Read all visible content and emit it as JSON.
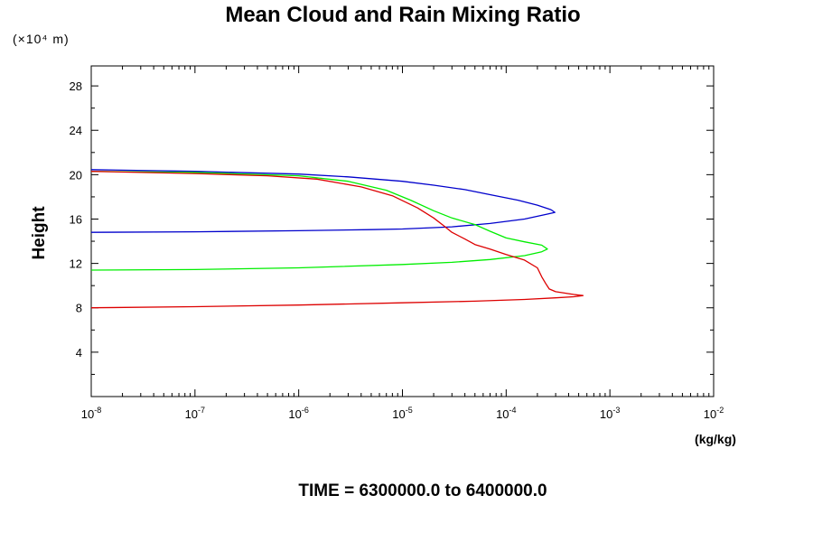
{
  "chart_data": {
    "type": "line",
    "title": "Mean Cloud and Rain Mixing Ratio",
    "ylabel": "Height",
    "yunit_note": "(×10⁴ m)",
    "xunit": "(kg/kg)",
    "footer": "TIME = 6300000.0 to 6400000.0",
    "x_scale": "log",
    "xlim": [
      1e-08,
      0.01
    ],
    "ylim": [
      0,
      29.8
    ],
    "x_tick_base": "10",
    "x_tick_exponents": [
      "-8",
      "-7",
      "-6",
      "-5",
      "-4",
      "-3",
      "-2"
    ],
    "y_ticks": [
      "4",
      "8",
      "12",
      "16",
      "20",
      "24",
      "28"
    ],
    "grid": false,
    "series": [
      {
        "color": "#0000cc",
        "points": [
          [
            1e-08,
            14.8
          ],
          [
            1e-07,
            14.85
          ],
          [
            1e-06,
            14.95
          ],
          [
            5e-06,
            15.05
          ],
          [
            1e-05,
            15.1
          ],
          [
            3e-05,
            15.3
          ],
          [
            7e-05,
            15.6
          ],
          [
            0.00015,
            16.0
          ],
          [
            0.00025,
            16.45
          ],
          [
            0.000295,
            16.6
          ],
          [
            0.00027,
            16.85
          ],
          [
            0.0002,
            17.25
          ],
          [
            0.00013,
            17.7
          ],
          [
            7e-05,
            18.2
          ],
          [
            4e-05,
            18.65
          ],
          [
            2e-05,
            19.05
          ],
          [
            1e-05,
            19.4
          ],
          [
            3e-06,
            19.8
          ],
          [
            1e-06,
            20.05
          ],
          [
            1e-07,
            20.3
          ],
          [
            1e-08,
            20.45
          ]
        ]
      },
      {
        "color": "#00ee00",
        "points": [
          [
            1e-08,
            11.4
          ],
          [
            1e-07,
            11.45
          ],
          [
            1e-06,
            11.6
          ],
          [
            1e-05,
            11.9
          ],
          [
            3e-05,
            12.1
          ],
          [
            7e-05,
            12.35
          ],
          [
            0.00015,
            12.7
          ],
          [
            0.00022,
            13.05
          ],
          [
            0.00025,
            13.3
          ],
          [
            0.00022,
            13.65
          ],
          [
            0.00015,
            13.95
          ],
          [
            0.0001,
            14.3
          ],
          [
            7e-05,
            14.9
          ],
          [
            5e-05,
            15.5
          ],
          [
            3e-05,
            16.1
          ],
          [
            2e-05,
            16.75
          ],
          [
            1.2e-05,
            17.7
          ],
          [
            7e-06,
            18.6
          ],
          [
            3e-06,
            19.4
          ],
          [
            1e-06,
            19.9
          ],
          [
            1e-07,
            20.2
          ],
          [
            1e-08,
            20.3
          ]
        ]
      },
      {
        "color": "#dd0000",
        "points": [
          [
            1e-08,
            8.0
          ],
          [
            1e-07,
            8.1
          ],
          [
            1e-06,
            8.25
          ],
          [
            1e-05,
            8.45
          ],
          [
            5e-05,
            8.6
          ],
          [
            0.00015,
            8.75
          ],
          [
            0.0003,
            8.9
          ],
          [
            0.00045,
            9.0
          ],
          [
            0.00055,
            9.1
          ],
          [
            0.00045,
            9.2
          ],
          [
            0.0003,
            9.45
          ],
          [
            0.00026,
            9.7
          ],
          [
            0.00024,
            10.2
          ],
          [
            0.00022,
            10.8
          ],
          [
            0.0002,
            11.6
          ],
          [
            0.00015,
            12.3
          ],
          [
            0.0001,
            12.8
          ],
          [
            7e-05,
            13.3
          ],
          [
            5e-05,
            13.7
          ],
          [
            4e-05,
            14.2
          ],
          [
            3e-05,
            14.8
          ],
          [
            2.5e-05,
            15.4
          ],
          [
            2e-05,
            16.1
          ],
          [
            1.4e-05,
            17.0
          ],
          [
            8e-06,
            18.1
          ],
          [
            4e-06,
            18.9
          ],
          [
            1.5e-06,
            19.6
          ],
          [
            5e-07,
            19.9
          ],
          [
            1e-07,
            20.1
          ],
          [
            1e-08,
            20.3
          ]
        ]
      }
    ]
  }
}
